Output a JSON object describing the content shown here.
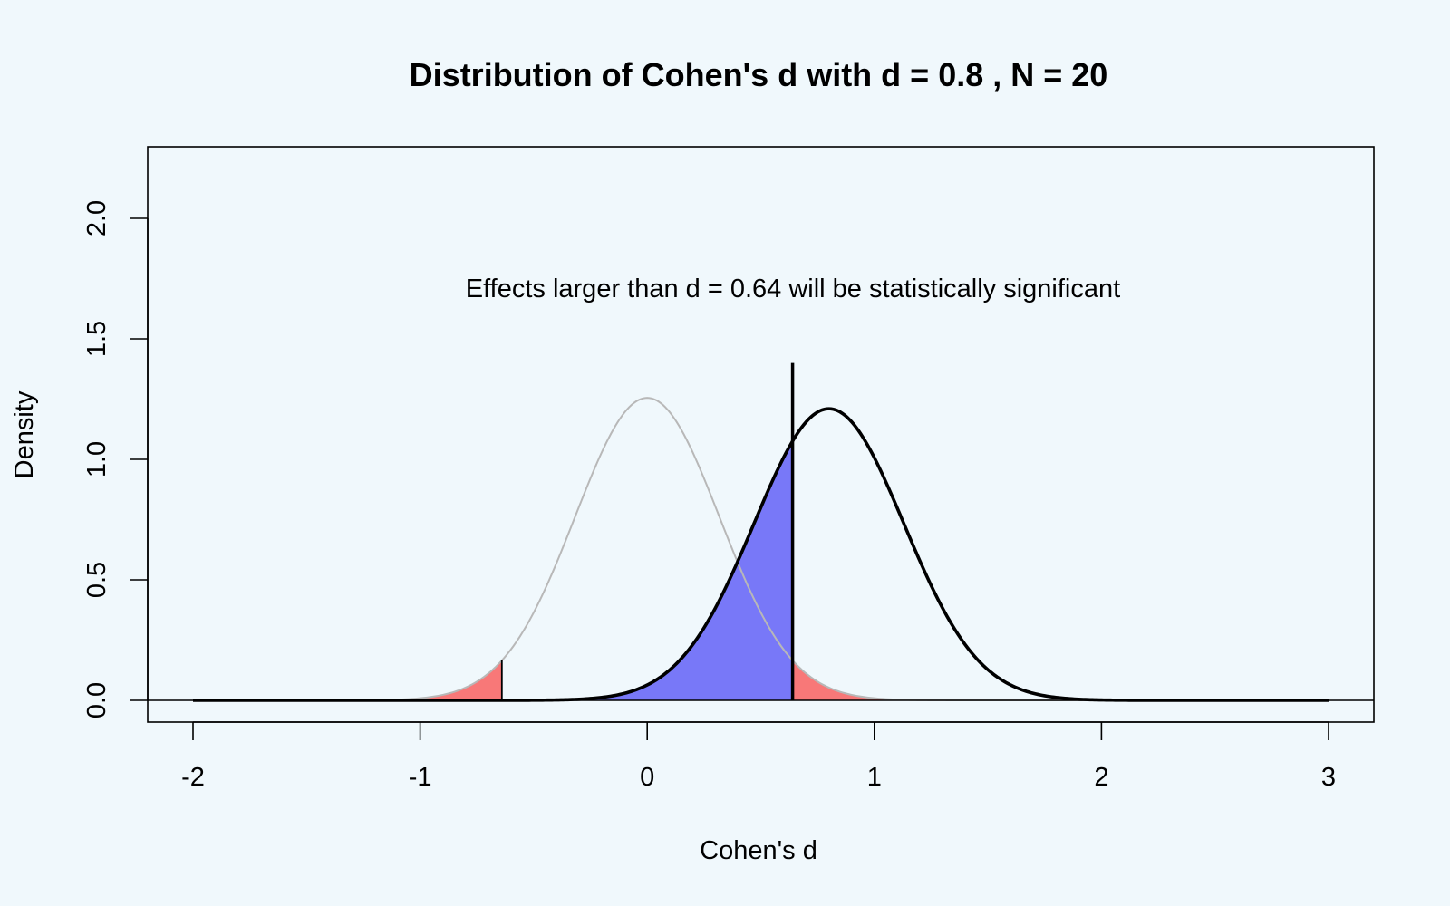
{
  "chart_data": {
    "type": "area",
    "title": "Distribution of Cohen's d with d =  0.8 , N =  20",
    "xlabel": "Cohen's d",
    "ylabel": "Density",
    "xlim": [
      -2,
      3
    ],
    "ylim": [
      0,
      2.2
    ],
    "x_ticks": [
      -2,
      -1,
      0,
      1,
      2,
      3
    ],
    "x_tick_labels": [
      "-2",
      "-1",
      "0",
      "1",
      "2",
      "3"
    ],
    "y_ticks": [
      0,
      0.5,
      1,
      1.5,
      2
    ],
    "y_tick_labels": [
      "0.0",
      "0.5",
      "1.0",
      "1.5",
      "2.0"
    ],
    "annotation": "Effects larger than d =  0.64 will be statistically significant",
    "critical_d": 0.64,
    "critical_line_top": 1.4,
    "series": [
      {
        "role": "null",
        "mean": 0,
        "peak": 1.255,
        "color": "#b8b8b8"
      },
      {
        "role": "alternative",
        "mean": 0.8,
        "peak": 1.21,
        "color": "#000000"
      }
    ],
    "shading": {
      "alpha_region_color": "#f87878",
      "beta_region_color": "#7878f8"
    },
    "grid": false
  }
}
